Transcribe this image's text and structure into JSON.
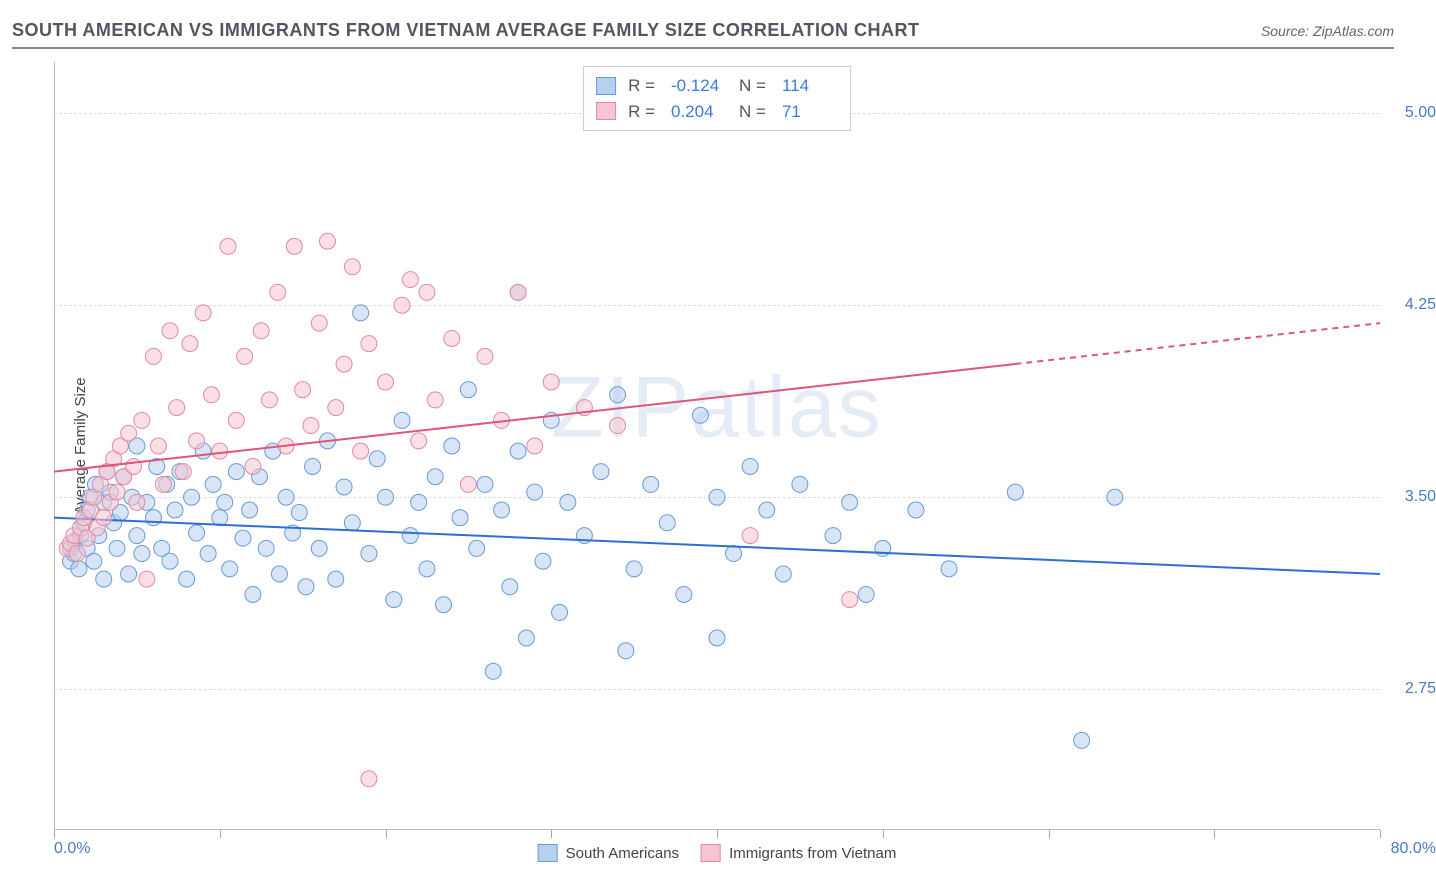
{
  "header": {
    "title": "SOUTH AMERICAN VS IMMIGRANTS FROM VIETNAM AVERAGE FAMILY SIZE CORRELATION CHART",
    "source": "Source: ZipAtlas.com"
  },
  "watermark": "ZIPatlas",
  "chart": {
    "type": "scatter",
    "ylabel": "Average Family Size",
    "xlim": [
      0,
      80
    ],
    "ylim": [
      2.2,
      5.2
    ],
    "yticks": [
      2.75,
      3.5,
      4.25,
      5.0
    ],
    "ytick_labels": [
      "2.75",
      "3.50",
      "4.25",
      "5.00"
    ],
    "xtick_positions": [
      0,
      10,
      20,
      30,
      40,
      50,
      60,
      70,
      80
    ],
    "xmin_label": "0.0%",
    "xmax_label": "80.0%",
    "background_color": "#ffffff",
    "grid_color": "#dddddd",
    "marker_radius": 8,
    "marker_opacity": 0.55,
    "series": [
      {
        "name": "South Americans",
        "color_fill": "#b7d0ee",
        "color_stroke": "#6a9bd8",
        "r_value": "-0.124",
        "n_value": "114",
        "trend": {
          "x1": 0,
          "y1": 3.42,
          "x2": 80,
          "y2": 3.2,
          "color": "#2f6fd1",
          "width": 2,
          "dashed_from_x": null
        },
        "points": [
          [
            1,
            3.3
          ],
          [
            1,
            3.25
          ],
          [
            1.2,
            3.28
          ],
          [
            1.3,
            3.33
          ],
          [
            1.5,
            3.22
          ],
          [
            1.6,
            3.35
          ],
          [
            1.8,
            3.4
          ],
          [
            2,
            3.45
          ],
          [
            2,
            3.3
          ],
          [
            2.2,
            3.5
          ],
          [
            2.4,
            3.25
          ],
          [
            2.5,
            3.55
          ],
          [
            2.7,
            3.35
          ],
          [
            3,
            3.48
          ],
          [
            3,
            3.18
          ],
          [
            3.2,
            3.6
          ],
          [
            3.4,
            3.52
          ],
          [
            3.6,
            3.4
          ],
          [
            3.8,
            3.3
          ],
          [
            4,
            3.44
          ],
          [
            4.2,
            3.58
          ],
          [
            4.5,
            3.2
          ],
          [
            4.7,
            3.5
          ],
          [
            5,
            3.35
          ],
          [
            5,
            3.7
          ],
          [
            5.3,
            3.28
          ],
          [
            5.6,
            3.48
          ],
          [
            6,
            3.42
          ],
          [
            6.2,
            3.62
          ],
          [
            6.5,
            3.3
          ],
          [
            6.8,
            3.55
          ],
          [
            7,
            3.25
          ],
          [
            7.3,
            3.45
          ],
          [
            7.6,
            3.6
          ],
          [
            8,
            3.18
          ],
          [
            8.3,
            3.5
          ],
          [
            8.6,
            3.36
          ],
          [
            9,
            3.68
          ],
          [
            9.3,
            3.28
          ],
          [
            9.6,
            3.55
          ],
          [
            10,
            3.42
          ],
          [
            10.3,
            3.48
          ],
          [
            10.6,
            3.22
          ],
          [
            11,
            3.6
          ],
          [
            11.4,
            3.34
          ],
          [
            11.8,
            3.45
          ],
          [
            12,
            3.12
          ],
          [
            12.4,
            3.58
          ],
          [
            12.8,
            3.3
          ],
          [
            13.2,
            3.68
          ],
          [
            13.6,
            3.2
          ],
          [
            14,
            3.5
          ],
          [
            14.4,
            3.36
          ],
          [
            14.8,
            3.44
          ],
          [
            15.2,
            3.15
          ],
          [
            15.6,
            3.62
          ],
          [
            16,
            3.3
          ],
          [
            16.5,
            3.72
          ],
          [
            17,
            3.18
          ],
          [
            17.5,
            3.54
          ],
          [
            18,
            3.4
          ],
          [
            18.5,
            4.22
          ],
          [
            19,
            3.28
          ],
          [
            19.5,
            3.65
          ],
          [
            20,
            3.5
          ],
          [
            20.5,
            3.1
          ],
          [
            21,
            3.8
          ],
          [
            21.5,
            3.35
          ],
          [
            22,
            3.48
          ],
          [
            22.5,
            3.22
          ],
          [
            23,
            3.58
          ],
          [
            23.5,
            3.08
          ],
          [
            24,
            3.7
          ],
          [
            24.5,
            3.42
          ],
          [
            25,
            3.92
          ],
          [
            25.5,
            3.3
          ],
          [
            26,
            3.55
          ],
          [
            26.5,
            2.82
          ],
          [
            27,
            3.45
          ],
          [
            27.5,
            3.15
          ],
          [
            28,
            3.68
          ],
          [
            28,
            4.3
          ],
          [
            28.5,
            2.95
          ],
          [
            29,
            3.52
          ],
          [
            29.5,
            3.25
          ],
          [
            30,
            3.8
          ],
          [
            30.5,
            3.05
          ],
          [
            31,
            3.48
          ],
          [
            32,
            3.35
          ],
          [
            33,
            3.6
          ],
          [
            34,
            3.9
          ],
          [
            34.5,
            2.9
          ],
          [
            35,
            3.22
          ],
          [
            36,
            3.55
          ],
          [
            37,
            3.4
          ],
          [
            38,
            3.12
          ],
          [
            39,
            3.82
          ],
          [
            40,
            3.5
          ],
          [
            40,
            2.95
          ],
          [
            41,
            3.28
          ],
          [
            42,
            3.62
          ],
          [
            43,
            3.45
          ],
          [
            44,
            3.2
          ],
          [
            45,
            3.55
          ],
          [
            47,
            3.35
          ],
          [
            48,
            3.48
          ],
          [
            50,
            3.3
          ],
          [
            52,
            3.45
          ],
          [
            54,
            3.22
          ],
          [
            58,
            3.52
          ],
          [
            64,
            3.5
          ],
          [
            62,
            2.55
          ],
          [
            49,
            3.12
          ]
        ]
      },
      {
        "name": "Immigrants from Vietnam",
        "color_fill": "#f5c5d1",
        "color_stroke": "#e28ba3",
        "r_value": "0.204",
        "n_value": "71",
        "trend": {
          "x1": 0,
          "y1": 3.6,
          "x2": 80,
          "y2": 4.18,
          "color": "#e0557b",
          "width": 2,
          "dashed_from_x": 58
        },
        "points": [
          [
            0.8,
            3.3
          ],
          [
            1,
            3.32
          ],
          [
            1.2,
            3.35
          ],
          [
            1.4,
            3.28
          ],
          [
            1.6,
            3.38
          ],
          [
            1.8,
            3.42
          ],
          [
            2,
            3.34
          ],
          [
            2.2,
            3.45
          ],
          [
            2.4,
            3.5
          ],
          [
            2.6,
            3.38
          ],
          [
            2.8,
            3.55
          ],
          [
            3,
            3.42
          ],
          [
            3.2,
            3.6
          ],
          [
            3.4,
            3.48
          ],
          [
            3.6,
            3.65
          ],
          [
            3.8,
            3.52
          ],
          [
            4,
            3.7
          ],
          [
            4.2,
            3.58
          ],
          [
            4.5,
            3.75
          ],
          [
            4.8,
            3.62
          ],
          [
            5,
            3.48
          ],
          [
            5.3,
            3.8
          ],
          [
            5.6,
            3.18
          ],
          [
            6,
            4.05
          ],
          [
            6.3,
            3.7
          ],
          [
            6.6,
            3.55
          ],
          [
            7,
            4.15
          ],
          [
            7.4,
            3.85
          ],
          [
            7.8,
            3.6
          ],
          [
            8.2,
            4.1
          ],
          [
            8.6,
            3.72
          ],
          [
            9,
            4.22
          ],
          [
            9.5,
            3.9
          ],
          [
            10,
            3.68
          ],
          [
            10.5,
            4.48
          ],
          [
            11,
            3.8
          ],
          [
            11.5,
            4.05
          ],
          [
            12,
            3.62
          ],
          [
            12.5,
            4.15
          ],
          [
            13,
            3.88
          ],
          [
            13.5,
            4.3
          ],
          [
            14,
            3.7
          ],
          [
            14.5,
            4.48
          ],
          [
            15,
            3.92
          ],
          [
            15.5,
            3.78
          ],
          [
            16,
            4.18
          ],
          [
            16.5,
            4.5
          ],
          [
            17,
            3.85
          ],
          [
            17.5,
            4.02
          ],
          [
            18,
            4.4
          ],
          [
            18.5,
            3.68
          ],
          [
            19,
            4.1
          ],
          [
            20,
            3.95
          ],
          [
            21,
            4.25
          ],
          [
            22,
            3.72
          ],
          [
            22.5,
            4.3
          ],
          [
            23,
            3.88
          ],
          [
            24,
            4.12
          ],
          [
            25,
            3.55
          ],
          [
            26,
            4.05
          ],
          [
            27,
            3.8
          ],
          [
            28,
            4.3
          ],
          [
            29,
            3.7
          ],
          [
            30,
            3.95
          ],
          [
            32,
            3.85
          ],
          [
            19,
            2.4
          ],
          [
            34,
            3.78
          ],
          [
            42,
            3.35
          ],
          [
            48,
            3.1
          ],
          [
            21.5,
            4.35
          ]
        ]
      }
    ]
  },
  "legend_stats": {
    "r_label": "R =",
    "n_label": "N ="
  }
}
